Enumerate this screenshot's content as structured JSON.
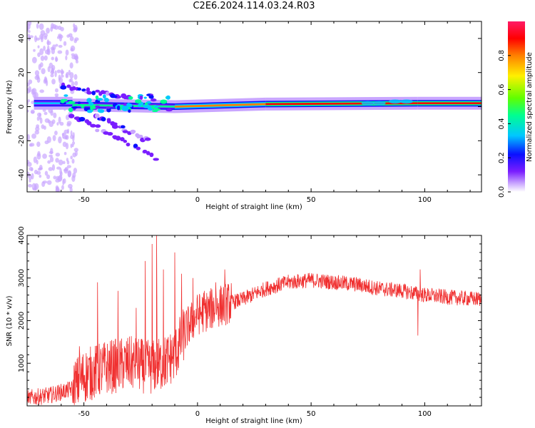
{
  "title": "C2E6.2024.114.03.24.R03",
  "colors": {
    "snr_line": "#f03030",
    "colormap": [
      "#ffffff",
      "#c9a6ff",
      "#7a1dff",
      "#0a10ff",
      "#00c7ff",
      "#00ff90",
      "#60ff00",
      "#fff000",
      "#ff8000",
      "#ff0000",
      "#ff1a66"
    ]
  },
  "chart_data": [
    {
      "type": "heatmap",
      "xlabel": "Height of straight line (km)",
      "ylabel": "Frequency (Hz)",
      "xlim": [
        -75,
        125
      ],
      "ylim": [
        -50,
        50
      ],
      "xticks": [
        -50,
        0,
        50,
        100
      ],
      "yticks": [
        -40,
        -20,
        0,
        20,
        40
      ],
      "colorbar": {
        "label": "Normalized spectral amplitude",
        "range": [
          0,
          1
        ],
        "ticks": [
          "0.0",
          "0.2",
          "0.4",
          "0.6",
          "0.8"
        ]
      },
      "ridges": [
        {
          "x0": -72,
          "x1": -55,
          "y0": 2,
          "y1": 2,
          "amplitude": 0.35
        },
        {
          "x0": -55,
          "x1": -10,
          "y0": 1,
          "y1": 0,
          "amplitude": 0.45
        },
        {
          "x0": -10,
          "x1": 30,
          "y0": 0,
          "y1": 1.5,
          "amplitude": 0.8
        },
        {
          "x0": 30,
          "x1": 97,
          "y0": 1.5,
          "y1": 2,
          "amplitude": 0.92
        },
        {
          "x0": 97,
          "x1": 125,
          "y0": 2,
          "y1": 2,
          "amplitude": 0.92
        }
      ],
      "branches": [
        {
          "x0": -60,
          "x1": -30,
          "y0": 12,
          "y1": 5
        },
        {
          "x0": -55,
          "x1": -18,
          "y0": -5,
          "y1": -30
        },
        {
          "x0": -45,
          "x1": -22,
          "y0": -5,
          "y1": -20
        }
      ]
    },
    {
      "type": "line",
      "xlabel": "Height of straight line (km)",
      "ylabel": "SNR (10 * v/v)",
      "xlim": [
        -75,
        125
      ],
      "ylim": [
        0,
        4000
      ],
      "xticks": [
        -50,
        0,
        50,
        100
      ],
      "yticks": [
        1000,
        2000,
        3000,
        4000
      ],
      "trend": [
        [
          -75,
          180
        ],
        [
          -65,
          250
        ],
        [
          -55,
          400
        ],
        [
          -50,
          700
        ],
        [
          -40,
          900
        ],
        [
          -30,
          1000
        ],
        [
          -20,
          900
        ],
        [
          -15,
          1000
        ],
        [
          -10,
          1200
        ],
        [
          -5,
          1800
        ],
        [
          0,
          2150
        ],
        [
          10,
          2350
        ],
        [
          20,
          2500
        ],
        [
          30,
          2750
        ],
        [
          40,
          2900
        ],
        [
          50,
          2950
        ],
        [
          60,
          2900
        ],
        [
          70,
          2850
        ],
        [
          80,
          2750
        ],
        [
          90,
          2700
        ],
        [
          100,
          2600
        ],
        [
          110,
          2550
        ],
        [
          125,
          2500
        ]
      ],
      "spikes": [
        [
          -52,
          1400
        ],
        [
          -44,
          2900
        ],
        [
          -35,
          2700
        ],
        [
          -27,
          2300
        ],
        [
          -23,
          3400
        ],
        [
          -20,
          3800
        ],
        [
          -18,
          4000
        ],
        [
          -15,
          3200
        ],
        [
          -10,
          3600
        ],
        [
          -7,
          3100
        ],
        [
          -2,
          3000
        ],
        [
          3,
          2700
        ],
        [
          8,
          2900
        ],
        [
          12,
          3200
        ],
        [
          98,
          3200
        ],
        [
          97,
          1650
        ]
      ]
    }
  ]
}
